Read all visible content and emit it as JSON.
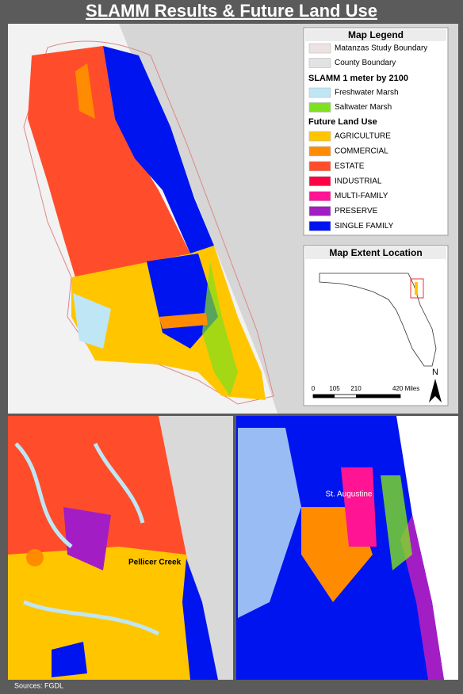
{
  "title": "SLAMM Results & Future Land Use",
  "legend": {
    "title": "Map Legend",
    "boundaries": [
      {
        "label": "Matanzas Study Boundary",
        "color": "#ece2e2"
      },
      {
        "label": "County Boundary",
        "color": "#e2e2e2"
      }
    ],
    "slamm_heading": "SLAMM 1 meter by 2100",
    "slamm": [
      {
        "label": "Freshwater Marsh",
        "color": "#bfe6f5"
      },
      {
        "label": "Saltwater Marsh",
        "color": "#7ee01e"
      }
    ],
    "land_use_heading": "Future Land Use",
    "land_use": [
      {
        "label": "AGRICULTURE",
        "color": "#ffc600"
      },
      {
        "label": "COMMERCIAL",
        "color": "#ff8c00"
      },
      {
        "label": "ESTATE",
        "color": "#ff4d2b"
      },
      {
        "label": "INDUSTRIAL",
        "color": "#ff0044"
      },
      {
        "label": "MULTI-FAMILY",
        "color": "#ff1493"
      },
      {
        "label": "PRESERVE",
        "color": "#a21ec4"
      },
      {
        "label": "SINGLE FAMILY",
        "color": "#0014f0"
      }
    ]
  },
  "extent": {
    "title": "Map Extent Location",
    "north": "N",
    "scale_labels": [
      "0",
      "105",
      "210",
      "420 Miles"
    ]
  },
  "insets": [
    {
      "label": "Pellicer Creek"
    },
    {
      "label": "St. Augustine"
    }
  ],
  "sources": "Sources: FGDL"
}
